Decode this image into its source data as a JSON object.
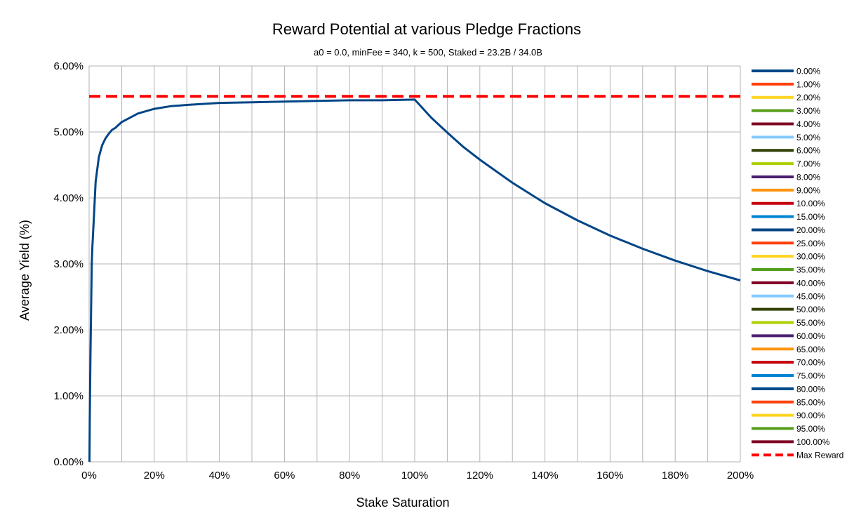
{
  "chart_data": {
    "type": "line",
    "title": "Reward Potential at various Pledge Fractions",
    "subtitle": "a0 = 0.0, minFee = 340, k = 500, Staked = 23.2B / 34.0B",
    "xlabel": "Stake Saturation",
    "ylabel": "Average Yield (%)",
    "xlim": [
      0,
      2
    ],
    "ylim": [
      0,
      0.06
    ],
    "x_ticks": [
      "0%",
      "20%",
      "40%",
      "60%",
      "80%",
      "100%",
      "120%",
      "140%",
      "160%",
      "180%",
      "200%"
    ],
    "y_ticks": [
      "0.00%",
      "1.00%",
      "2.00%",
      "3.00%",
      "4.00%",
      "5.00%",
      "6.00%"
    ],
    "grid": true,
    "legend_position": "right",
    "series": [
      {
        "name": "0.00%",
        "color": "#004586",
        "x": [
          0.001,
          0.002,
          0.004,
          0.006,
          0.008,
          0.01,
          0.015,
          0.02,
          0.03,
          0.04,
          0.05,
          0.06,
          0.07,
          0.08,
          0.1,
          0.15,
          0.2,
          0.25,
          0.3,
          0.4,
          0.5,
          0.6,
          0.7,
          0.8,
          0.9,
          1.0,
          1.05,
          1.1,
          1.15,
          1.2,
          1.3,
          1.4,
          1.5,
          1.6,
          1.7,
          1.8,
          1.9,
          2.0
        ],
        "y": [
          0.0,
          0.0063,
          0.016,
          0.0229,
          0.0299,
          0.0325,
          0.0375,
          0.0425,
          0.0462,
          0.048,
          0.049,
          0.0497,
          0.0503,
          0.0506,
          0.0515,
          0.0528,
          0.0535,
          0.0539,
          0.0541,
          0.0544,
          0.0545,
          0.0546,
          0.0547,
          0.0548,
          0.0548,
          0.0549,
          0.0522,
          0.0499,
          0.0477,
          0.0458,
          0.0423,
          0.0392,
          0.0366,
          0.0343,
          0.0323,
          0.0305,
          0.0289,
          0.0275
        ]
      },
      {
        "name": "1.00%",
        "color": "#ff420e"
      },
      {
        "name": "2.00%",
        "color": "#ffd320"
      },
      {
        "name": "3.00%",
        "color": "#579d1c"
      },
      {
        "name": "4.00%",
        "color": "#7e0021"
      },
      {
        "name": "5.00%",
        "color": "#83caff"
      },
      {
        "name": "6.00%",
        "color": "#314004"
      },
      {
        "name": "7.00%",
        "color": "#aecf00"
      },
      {
        "name": "8.00%",
        "color": "#4b1f6f"
      },
      {
        "name": "9.00%",
        "color": "#ff950e"
      },
      {
        "name": "10.00%",
        "color": "#c5000b"
      },
      {
        "name": "15.00%",
        "color": "#0084d1"
      },
      {
        "name": "20.00%",
        "color": "#004586"
      },
      {
        "name": "25.00%",
        "color": "#ff420e"
      },
      {
        "name": "30.00%",
        "color": "#ffd320"
      },
      {
        "name": "35.00%",
        "color": "#579d1c"
      },
      {
        "name": "40.00%",
        "color": "#7e0021"
      },
      {
        "name": "45.00%",
        "color": "#83caff"
      },
      {
        "name": "50.00%",
        "color": "#314004"
      },
      {
        "name": "55.00%",
        "color": "#aecf00"
      },
      {
        "name": "60.00%",
        "color": "#4b1f6f"
      },
      {
        "name": "65.00%",
        "color": "#ff950e"
      },
      {
        "name": "70.00%",
        "color": "#c5000b"
      },
      {
        "name": "75.00%",
        "color": "#0084d1"
      },
      {
        "name": "80.00%",
        "color": "#004586"
      },
      {
        "name": "85.00%",
        "color": "#ff420e"
      },
      {
        "name": "90.00%",
        "color": "#ffd320"
      },
      {
        "name": "95.00%",
        "color": "#579d1c"
      },
      {
        "name": "100.00%",
        "color": "#7e0021"
      },
      {
        "name": "Max Reward",
        "color": "#ff0000",
        "dashed": true,
        "x": [
          0,
          2
        ],
        "y": [
          0.0554,
          0.0554
        ]
      }
    ]
  }
}
